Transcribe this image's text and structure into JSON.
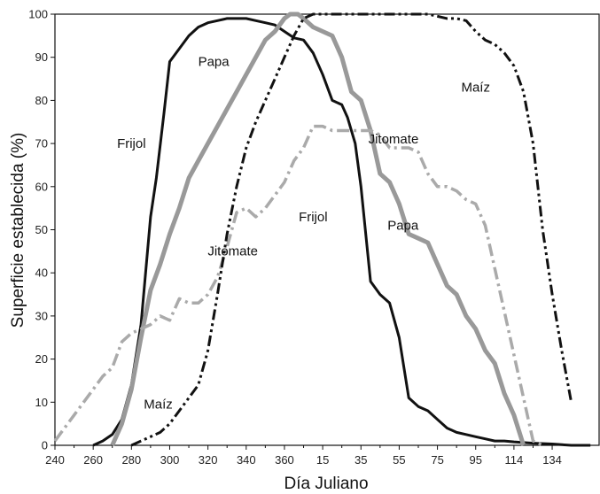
{
  "chart_data": {
    "type": "line",
    "title": "",
    "xlabel": "Día Juliano",
    "ylabel": "Superficie establecida (%)",
    "grid": false,
    "legend": "none",
    "x_ticks": [
      "240",
      "260",
      "280",
      "300",
      "320",
      "340",
      "360",
      "15",
      "35",
      "55",
      "75",
      "95",
      "114",
      "134"
    ],
    "ylim": [
      0,
      100
    ],
    "y_ticks": [
      0,
      10,
      20,
      30,
      40,
      50,
      60,
      70,
      80,
      90,
      100
    ],
    "series": [
      {
        "name": "Frijol",
        "color": "#111111",
        "style": "solid",
        "x": [
          260,
          265,
          270,
          275,
          280,
          285,
          290,
          293,
          297,
          300,
          305,
          310,
          315,
          320,
          325,
          330,
          335,
          340,
          345,
          350,
          355,
          360,
          365,
          370,
          375,
          380,
          385,
          390,
          393,
          397,
          400,
          405,
          410,
          415,
          420,
          425,
          430,
          435,
          440,
          445,
          450,
          455,
          460,
          465,
          470,
          475,
          480,
          490,
          500,
          510,
          520
        ],
        "y": [
          0,
          1,
          2.5,
          6,
          14,
          28,
          53,
          62,
          77,
          89,
          92,
          95,
          97,
          98,
          98.5,
          99,
          99,
          99,
          98.5,
          98,
          97.5,
          96,
          94.5,
          94,
          91,
          86,
          80,
          79,
          76,
          70,
          60,
          38,
          35,
          33,
          25,
          11,
          9,
          8,
          6,
          4,
          3,
          2.5,
          2,
          1.5,
          1,
          1,
          0.8,
          0.5,
          0.3,
          0,
          0
        ]
      },
      {
        "name": "Papa",
        "color": "#999999",
        "style": "solid",
        "x": [
          270,
          275,
          280,
          285,
          290,
          295,
          300,
          305,
          310,
          315,
          320,
          325,
          330,
          335,
          340,
          345,
          350,
          355,
          360,
          363,
          367,
          370,
          375,
          380,
          385,
          390,
          395,
          400,
          405,
          410,
          415,
          420,
          425,
          430,
          435,
          440,
          445,
          450,
          455,
          460,
          465,
          470,
          475,
          480,
          485
        ],
        "y": [
          0,
          5,
          13,
          25,
          36,
          42,
          49,
          55,
          62,
          66,
          70,
          74,
          78,
          82,
          86,
          90,
          94,
          96,
          99,
          100,
          100,
          99,
          97,
          96,
          95,
          90,
          82,
          80,
          73,
          63,
          61,
          56,
          49,
          48,
          47,
          42,
          37,
          35,
          30,
          27,
          22,
          19,
          12,
          7,
          0
        ]
      },
      {
        "name": "Jitomate",
        "color": "#aaaaaa",
        "style": "dash-dot",
        "x": [
          240,
          245,
          250,
          255,
          260,
          265,
          270,
          275,
          280,
          285,
          290,
          295,
          300,
          305,
          310,
          315,
          320,
          325,
          330,
          335,
          340,
          345,
          350,
          355,
          360,
          365,
          370,
          375,
          380,
          385,
          390,
          395,
          400,
          405,
          410,
          415,
          420,
          425,
          430,
          435,
          440,
          445,
          450,
          455,
          460,
          465,
          470,
          475,
          480,
          485,
          490,
          495
        ],
        "y": [
          1,
          4,
          7,
          10,
          13,
          16,
          18,
          24,
          26,
          27,
          28,
          30,
          29,
          34,
          33,
          33,
          35,
          39,
          46,
          54,
          55,
          53,
          55,
          58,
          61,
          66,
          69,
          74,
          74,
          73,
          73,
          73,
          73,
          73,
          72,
          69,
          69,
          69,
          68,
          63,
          60,
          60,
          59,
          57,
          56,
          51,
          41,
          31,
          21,
          11,
          1,
          0
        ]
      },
      {
        "name": "Maíz",
        "color": "#111111",
        "style": "dash-dot-dot",
        "x": [
          280,
          285,
          290,
          295,
          300,
          305,
          310,
          315,
          320,
          325,
          330,
          335,
          340,
          345,
          350,
          355,
          360,
          365,
          370,
          375,
          380,
          385,
          390,
          395,
          400,
          405,
          410,
          415,
          420,
          425,
          430,
          435,
          440,
          445,
          450,
          455,
          460,
          465,
          470,
          475,
          480,
          485,
          490,
          495,
          500,
          505,
          510
        ],
        "y": [
          0,
          1,
          2,
          3,
          5,
          8,
          11,
          14,
          22,
          35,
          49,
          60,
          69,
          75,
          80,
          85,
          90,
          95,
          99,
          100,
          100,
          100,
          100,
          100,
          100,
          100,
          100,
          100,
          100,
          100,
          100,
          100,
          99.5,
          99,
          99,
          98.5,
          96,
          94,
          93,
          91,
          88,
          82,
          70,
          50,
          35,
          22,
          10
        ]
      }
    ],
    "annotations": [
      {
        "text": "Papa",
        "x": 323,
        "y": 88
      },
      {
        "text": "Frijol",
        "x": 280,
        "y": 69
      },
      {
        "text": "Maíz",
        "x": 460,
        "y": 82
      },
      {
        "text": "Jitomate",
        "x": 417,
        "y": 70
      },
      {
        "text": "Frijol",
        "x": 375,
        "y": 52
      },
      {
        "text": "Papa",
        "x": 422,
        "y": 50
      },
      {
        "text": "Jitomate",
        "x": 333,
        "y": 44
      },
      {
        "text": "Maíz",
        "x": 294,
        "y": 8.5
      }
    ]
  }
}
